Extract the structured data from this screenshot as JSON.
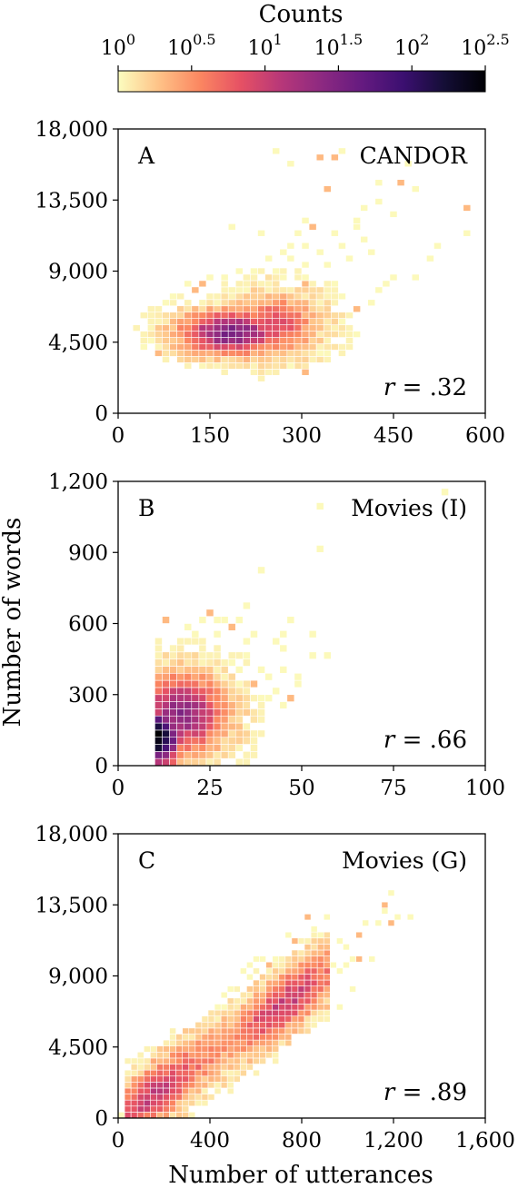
{
  "colorbar": {
    "label": "Counts",
    "ticks": [
      {
        "base": "10",
        "exp": "0",
        "value": 0
      },
      {
        "base": "10",
        "exp": "0.5",
        "value": 0.5
      },
      {
        "base": "10",
        "exp": "1",
        "value": 1
      },
      {
        "base": "10",
        "exp": "1.5",
        "value": 1.5
      },
      {
        "base": "10",
        "exp": "2",
        "value": 2
      },
      {
        "base": "10",
        "exp": "2.5",
        "value": 2.5
      }
    ],
    "scale": "log",
    "colormap": "magma_r",
    "colormap_stops": [
      "#fcfdbf",
      "#fec287",
      "#fb8761",
      "#e65164",
      "#b73779",
      "#8c2981",
      "#641a80",
      "#3b0f70",
      "#140e36",
      "#000004"
    ]
  },
  "shared": {
    "ylabel": "Number of words",
    "xlabel": "Number of utterances"
  },
  "chart_data": [
    {
      "type": "heatmap",
      "panel": "A",
      "title": "CANDOR",
      "annotation": {
        "prefix": "r",
        "value": " = .32"
      },
      "xlim": [
        0,
        600
      ],
      "ylim": [
        0,
        18000
      ],
      "xticks": [
        "0",
        "150",
        "300",
        "450",
        "600"
      ],
      "xtick_values": [
        0,
        150,
        300,
        450,
        600
      ],
      "yticks": [
        "0",
        "4,500",
        "9,000",
        "13,500",
        "18,000"
      ],
      "ytick_values": [
        0,
        4500,
        9000,
        13500,
        18000
      ],
      "bin": {
        "x": 12,
        "y": 400
      },
      "clusters": [
        {
          "cx": 185,
          "cy": 5100,
          "sx": 55,
          "sy": 900,
          "peak": 1.55
        },
        {
          "cx": 255,
          "cy": 5600,
          "sx": 45,
          "sy": 1200,
          "peak": 0.9
        }
      ],
      "scatter": [
        [
          50,
          4400
        ],
        [
          40,
          4200
        ],
        [
          60,
          3800
        ],
        [
          300,
          12200
        ],
        [
          340,
          14000
        ],
        [
          330,
          16300
        ],
        [
          350,
          16200
        ],
        [
          365,
          16600
        ],
        [
          280,
          15800
        ],
        [
          260,
          16700
        ],
        [
          470,
          15600
        ],
        [
          465,
          14700
        ],
        [
          430,
          14600
        ],
        [
          480,
          14200
        ],
        [
          420,
          13200
        ],
        [
          400,
          12800
        ],
        [
          450,
          12600
        ],
        [
          570,
          13000
        ],
        [
          565,
          11400
        ],
        [
          520,
          10600
        ],
        [
          510,
          9800
        ],
        [
          490,
          8500
        ],
        [
          455,
          8700
        ],
        [
          440,
          8200
        ],
        [
          430,
          7900
        ],
        [
          410,
          7100
        ],
        [
          395,
          6500
        ],
        [
          385,
          4800
        ],
        [
          380,
          4300
        ],
        [
          360,
          5900
        ],
        [
          350,
          8200
        ],
        [
          340,
          9400
        ],
        [
          330,
          10200
        ],
        [
          320,
          11700
        ],
        [
          290,
          11200
        ],
        [
          285,
          10700
        ],
        [
          270,
          10300
        ],
        [
          230,
          11200
        ],
        [
          180,
          11700
        ],
        [
          220,
          9100
        ],
        [
          300,
          9500
        ],
        [
          240,
          9900
        ],
        [
          360,
          10600
        ],
        [
          375,
          9900
        ],
        [
          400,
          11000
        ],
        [
          395,
          11800
        ],
        [
          410,
          10200
        ],
        [
          385,
          12100
        ],
        [
          350,
          11400
        ],
        [
          310,
          10500
        ],
        [
          130,
          7900
        ],
        [
          140,
          8300
        ],
        [
          110,
          8100
        ],
        [
          90,
          7400
        ],
        [
          80,
          7000
        ],
        [
          70,
          6200
        ],
        [
          75,
          5400
        ],
        [
          85,
          4500
        ],
        [
          320,
          3300
        ],
        [
          300,
          2600
        ],
        [
          285,
          3000
        ],
        [
          210,
          3300
        ],
        [
          220,
          2900
        ],
        [
          250,
          3500
        ],
        [
          170,
          3100
        ],
        [
          160,
          3600
        ],
        [
          120,
          3700
        ],
        [
          100,
          3900
        ],
        [
          335,
          4000
        ],
        [
          330,
          3600
        ],
        [
          340,
          6100
        ],
        [
          345,
          6800
        ],
        [
          325,
          7300
        ],
        [
          310,
          8000
        ],
        [
          305,
          8700
        ],
        [
          275,
          8500
        ],
        [
          255,
          8900
        ],
        [
          195,
          8900
        ],
        [
          175,
          8700
        ],
        [
          150,
          8600
        ],
        [
          135,
          6900
        ],
        [
          260,
          7300
        ],
        [
          370,
          7500
        ],
        [
          280,
          9600
        ]
      ]
    },
    {
      "type": "heatmap",
      "panel": "B",
      "title": "Movies (I)",
      "annotation": {
        "prefix": "r",
        "value": " = .66"
      },
      "xlim": [
        0,
        100
      ],
      "ylim": [
        0,
        1200
      ],
      "xticks": [
        "0",
        "25",
        "50",
        "75",
        "100"
      ],
      "xtick_values": [
        0,
        25,
        50,
        75,
        100
      ],
      "yticks": [
        "0",
        "300",
        "600",
        "900",
        "1,200"
      ],
      "ytick_values": [
        0,
        300,
        600,
        900,
        1200
      ],
      "bin": {
        "x": 2,
        "y": 30
      },
      "xmin_data": 10,
      "clusters": [
        {
          "cx": 11,
          "cy": 120,
          "sx": 4,
          "sy": 80,
          "peak": 2.5
        },
        {
          "cx": 17,
          "cy": 220,
          "sx": 8,
          "sy": 110,
          "peak": 1.4
        }
      ],
      "scatter": [
        [
          88,
          1140
        ],
        [
          55,
          1090
        ],
        [
          54,
          920
        ],
        [
          38,
          830
        ],
        [
          57,
          470
        ],
        [
          53,
          460
        ],
        [
          52,
          550
        ],
        [
          47,
          600
        ],
        [
          44,
          490
        ],
        [
          42,
          520
        ],
        [
          40,
          380
        ],
        [
          38,
          410
        ],
        [
          34,
          460
        ],
        [
          35,
          510
        ],
        [
          36,
          560
        ],
        [
          35,
          660
        ],
        [
          32,
          620
        ],
        [
          30,
          580
        ],
        [
          28,
          610
        ],
        [
          26,
          610
        ],
        [
          24,
          650
        ],
        [
          22,
          600
        ],
        [
          18,
          590
        ],
        [
          13,
          610
        ],
        [
          21,
          560
        ],
        [
          27,
          540
        ],
        [
          30,
          430
        ],
        [
          33,
          390
        ],
        [
          36,
          330
        ],
        [
          38,
          270
        ],
        [
          42,
          310
        ],
        [
          45,
          400
        ],
        [
          48,
          330
        ],
        [
          46,
          270
        ],
        [
          44,
          260
        ],
        [
          40,
          290
        ],
        [
          32,
          290
        ],
        [
          30,
          220
        ],
        [
          34,
          230
        ],
        [
          28,
          180
        ],
        [
          31,
          170
        ],
        [
          26,
          150
        ],
        [
          33,
          140
        ],
        [
          48,
          370
        ],
        [
          45,
          560
        ]
      ]
    },
    {
      "type": "heatmap",
      "panel": "C",
      "title": "Movies (G)",
      "annotation": {
        "prefix": "r",
        "value": " = .89"
      },
      "xlim": [
        0,
        1600
      ],
      "ylim": [
        0,
        18000
      ],
      "xticks": [
        "0",
        "400",
        "800",
        "1,200",
        "1,600"
      ],
      "xtick_values": [
        0,
        400,
        800,
        1200,
        1600
      ],
      "yticks": [
        "0",
        "4,500",
        "9,000",
        "13,500",
        "18,000"
      ],
      "ytick_values": [
        0,
        4500,
        9000,
        13500,
        18000
      ],
      "bin": {
        "x": 28,
        "y": 380
      },
      "ridge": {
        "slope": 10.1,
        "from": 20,
        "to": 900,
        "spread": 1300,
        "peak": 1.0
      },
      "scatter": [
        [
          30,
          300
        ],
        [
          10,
          300
        ],
        [
          60,
          800
        ],
        [
          90,
          700
        ],
        [
          120,
          1200
        ],
        [
          150,
          1500
        ],
        [
          150,
          2000
        ],
        [
          180,
          1800
        ],
        [
          200,
          2300
        ],
        [
          230,
          2700
        ],
        [
          250,
          2400
        ],
        [
          280,
          3000
        ],
        [
          1180,
          14200
        ],
        [
          1160,
          13600
        ],
        [
          1120,
          12300
        ],
        [
          1230,
          12900
        ],
        [
          1260,
          12700
        ],
        [
          1200,
          12500
        ],
        [
          1170,
          13100
        ],
        [
          1080,
          12200
        ],
        [
          1040,
          11400
        ],
        [
          1000,
          10700
        ],
        [
          960,
          11300
        ],
        [
          1010,
          10000
        ],
        [
          980,
          9800
        ],
        [
          1050,
          10100
        ],
        [
          1100,
          10200
        ],
        [
          970,
          9200
        ],
        [
          940,
          9600
        ],
        [
          900,
          8800
        ],
        [
          920,
          9900
        ],
        [
          880,
          10300
        ],
        [
          860,
          10700
        ],
        [
          840,
          11000
        ],
        [
          880,
          11500
        ],
        [
          920,
          12800
        ],
        [
          860,
          12100
        ],
        [
          830,
          12800
        ],
        [
          820,
          10000
        ],
        [
          790,
          10500
        ],
        [
          760,
          11100
        ],
        [
          730,
          11700
        ],
        [
          690,
          10200
        ],
        [
          670,
          9500
        ],
        [
          640,
          8700
        ],
        [
          610,
          8300
        ],
        [
          580,
          8800
        ],
        [
          560,
          9700
        ],
        [
          540,
          9300
        ],
        [
          500,
          8300
        ],
        [
          470,
          7600
        ],
        [
          450,
          6900
        ],
        [
          430,
          7200
        ],
        [
          400,
          6600
        ],
        [
          380,
          5900
        ],
        [
          360,
          5600
        ],
        [
          330,
          5300
        ],
        [
          310,
          4900
        ],
        [
          290,
          4600
        ],
        [
          260,
          4200
        ],
        [
          230,
          3800
        ],
        [
          200,
          3500
        ],
        [
          180,
          3300
        ],
        [
          160,
          2900
        ],
        [
          200,
          1400
        ],
        [
          230,
          1700
        ],
        [
          260,
          1900
        ],
        [
          300,
          2200
        ],
        [
          330,
          2500
        ],
        [
          380,
          2600
        ],
        [
          420,
          3000
        ],
        [
          460,
          3600
        ],
        [
          520,
          3700
        ],
        [
          560,
          4400
        ],
        [
          610,
          4700
        ],
        [
          650,
          5200
        ],
        [
          700,
          5500
        ],
        [
          760,
          6000
        ],
        [
          800,
          6500
        ],
        [
          850,
          6700
        ],
        [
          900,
          7000
        ],
        [
          960,
          7200
        ],
        [
          1020,
          8200
        ],
        [
          780,
          9600
        ],
        [
          740,
          8600
        ],
        [
          700,
          8900
        ],
        [
          640,
          9900
        ],
        [
          600,
          10200
        ]
      ]
    }
  ]
}
